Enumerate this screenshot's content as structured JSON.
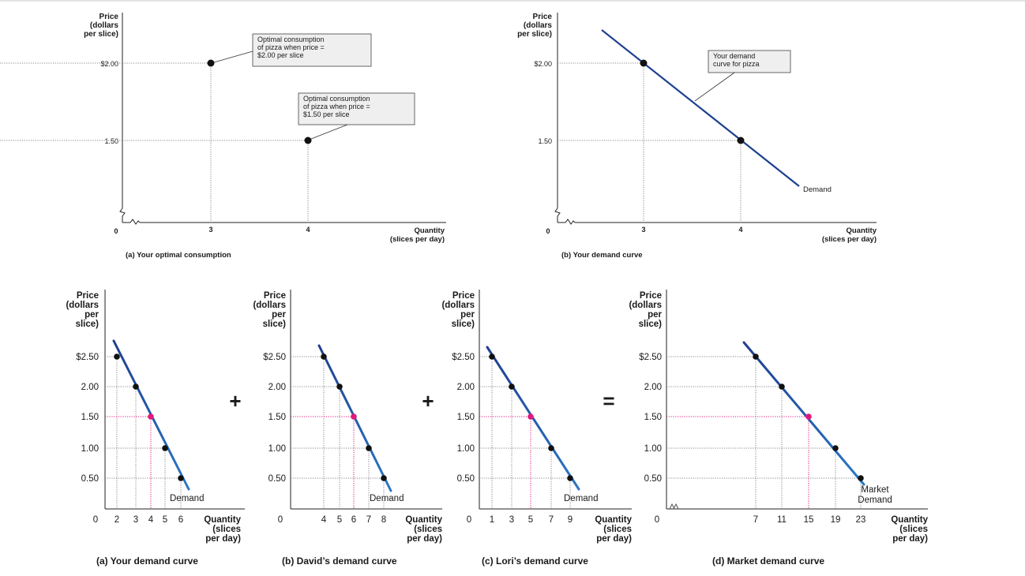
{
  "figures": {
    "a": {
      "y_title": [
        "Price",
        "(dollars",
        "per slice)"
      ],
      "x_title": [
        "Quantity",
        "(slices per day)"
      ],
      "origin": "0",
      "yticks": [
        {
          "v": 2.0,
          "label": "$2.00"
        },
        {
          "v": 1.5,
          "label": "1.50"
        }
      ],
      "xticks": [
        {
          "v": 3,
          "label": "3"
        },
        {
          "v": 4,
          "label": "4"
        }
      ],
      "points": [
        {
          "x": 3,
          "y": 2.0
        },
        {
          "x": 4,
          "y": 1.5
        }
      ],
      "callouts": [
        [
          "Optimal consumption",
          "of pizza when price =",
          "$2.00 per slice"
        ],
        [
          "Optimal consumption",
          "of pizza when price =",
          "$1.50 per slice"
        ]
      ],
      "caption": "(a) Your optimal consumption"
    },
    "b": {
      "y_title": [
        "Price",
        "(dollars",
        "per slice)"
      ],
      "x_title": [
        "Quantity",
        "(slices per day)"
      ],
      "origin": "0",
      "yticks": [
        {
          "v": 2.0,
          "label": "$2.00"
        },
        {
          "v": 1.5,
          "label": "1.50"
        }
      ],
      "xticks": [
        {
          "v": 3,
          "label": "3"
        },
        {
          "v": 4,
          "label": "4"
        }
      ],
      "points": [
        {
          "x": 3,
          "y": 2.0
        },
        {
          "x": 4,
          "y": 1.5
        }
      ],
      "curve_label": "Demand",
      "callout": [
        "Your demand",
        "curve for pizza"
      ],
      "caption": "(b) Your demand curve"
    }
  },
  "operators": {
    "plus": "+",
    "equals": "="
  },
  "chart_data": [
    {
      "type": "line",
      "caption": "(a) Your demand curve",
      "ylabel": [
        "Price",
        "(dollars",
        "per",
        "slice)"
      ],
      "xlabel": [
        "Quantity",
        "(slices",
        "per day)"
      ],
      "yticks": [
        "$2.50",
        "2.00",
        "1.50",
        "1.00",
        "0.50"
      ],
      "y": [
        2.5,
        2.0,
        1.5,
        1.0,
        0.5
      ],
      "x": [
        2,
        3,
        4,
        5,
        6
      ],
      "xticks": [
        "0",
        "2",
        "3",
        "4",
        "5",
        "6"
      ],
      "highlight_price": 1.5,
      "highlight_color": "#e0197d",
      "curve_label": "Demand"
    },
    {
      "type": "line",
      "caption": "(b) David’s demand curve",
      "ylabel": [
        "Price",
        "(dollars",
        "per",
        "slice)"
      ],
      "xlabel": [
        "Quantity",
        "(slices",
        "per day)"
      ],
      "yticks": [
        "$2.50",
        "2.00",
        "1.50",
        "1.00",
        "0.50"
      ],
      "y": [
        2.5,
        2.0,
        1.5,
        1.0,
        0.5
      ],
      "x": [
        4,
        5,
        6,
        7,
        8
      ],
      "xticks": [
        "0",
        "4",
        "5",
        "6",
        "7",
        "8"
      ],
      "highlight_price": 1.5,
      "highlight_color": "#e0197d",
      "curve_label": "Demand"
    },
    {
      "type": "line",
      "caption": "(c) Lori’s demand curve",
      "ylabel": [
        "Price",
        "(dollars",
        "per",
        "slice)"
      ],
      "xlabel": [
        "Quantity",
        "(slices",
        "per day)"
      ],
      "yticks": [
        "$2.50",
        "2.00",
        "1.50",
        "1.00",
        "0.50"
      ],
      "y": [
        2.5,
        2.0,
        1.5,
        1.0,
        0.5
      ],
      "x": [
        1,
        3,
        5,
        7,
        9
      ],
      "xticks": [
        "0",
        "1",
        "3",
        "5",
        "7",
        "9"
      ],
      "highlight_price": 1.5,
      "highlight_color": "#e0197d",
      "curve_label": "Demand"
    },
    {
      "type": "line",
      "caption": "(d) Market demand curve",
      "ylabel": [
        "Price",
        "(dollars",
        "per",
        "slice)"
      ],
      "xlabel": [
        "Quantity",
        "(slices",
        "per day)"
      ],
      "yticks": [
        "$2.50",
        "2.00",
        "1.50",
        "1.00",
        "0.50"
      ],
      "y": [
        2.5,
        2.0,
        1.5,
        1.0,
        0.5
      ],
      "x": [
        7,
        11,
        15,
        19,
        23
      ],
      "xticks": [
        "0",
        "7",
        "11",
        "15",
        "19",
        "23"
      ],
      "highlight_price": 1.5,
      "highlight_color": "#e0197d",
      "curve_label": [
        "Market",
        "Demand"
      ]
    }
  ],
  "colors": {
    "curve_top": "#1f3f8f",
    "curve_bottom": "#2b78c6",
    "highlight": "#e0197d",
    "grid": "#888888"
  }
}
